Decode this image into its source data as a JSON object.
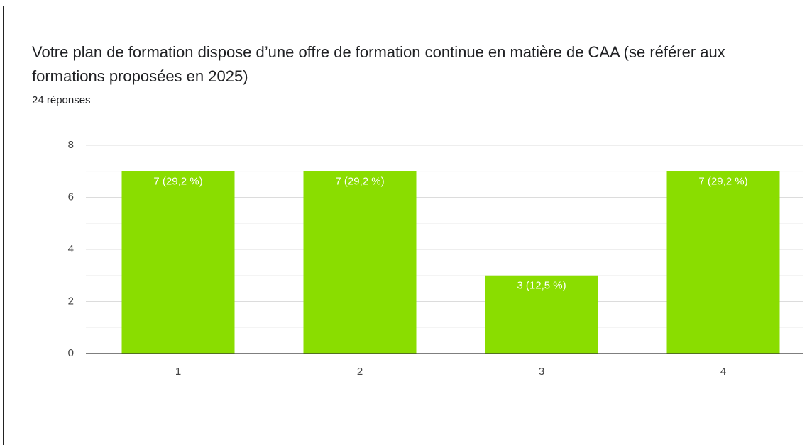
{
  "chart_data": {
    "type": "bar",
    "title": "Votre plan de formation dispose d’une offre de formation continue en matière de CAA  (se référer aux formations proposées en 2025)",
    "subtitle": "24 réponses",
    "categories": [
      "1",
      "2",
      "3",
      "4"
    ],
    "values": [
      7,
      7,
      3,
      7
    ],
    "value_labels": [
      "7 (29,2 %)",
      "7 (29,2 %)",
      "3 (12,5 %)",
      "7 (29,2 %)"
    ],
    "color": "#8add00",
    "ylim": [
      0,
      8
    ],
    "yticks": [
      0,
      2,
      4,
      6,
      8
    ],
    "minor_yticks": [
      1,
      3,
      5,
      7
    ],
    "grid": true
  }
}
